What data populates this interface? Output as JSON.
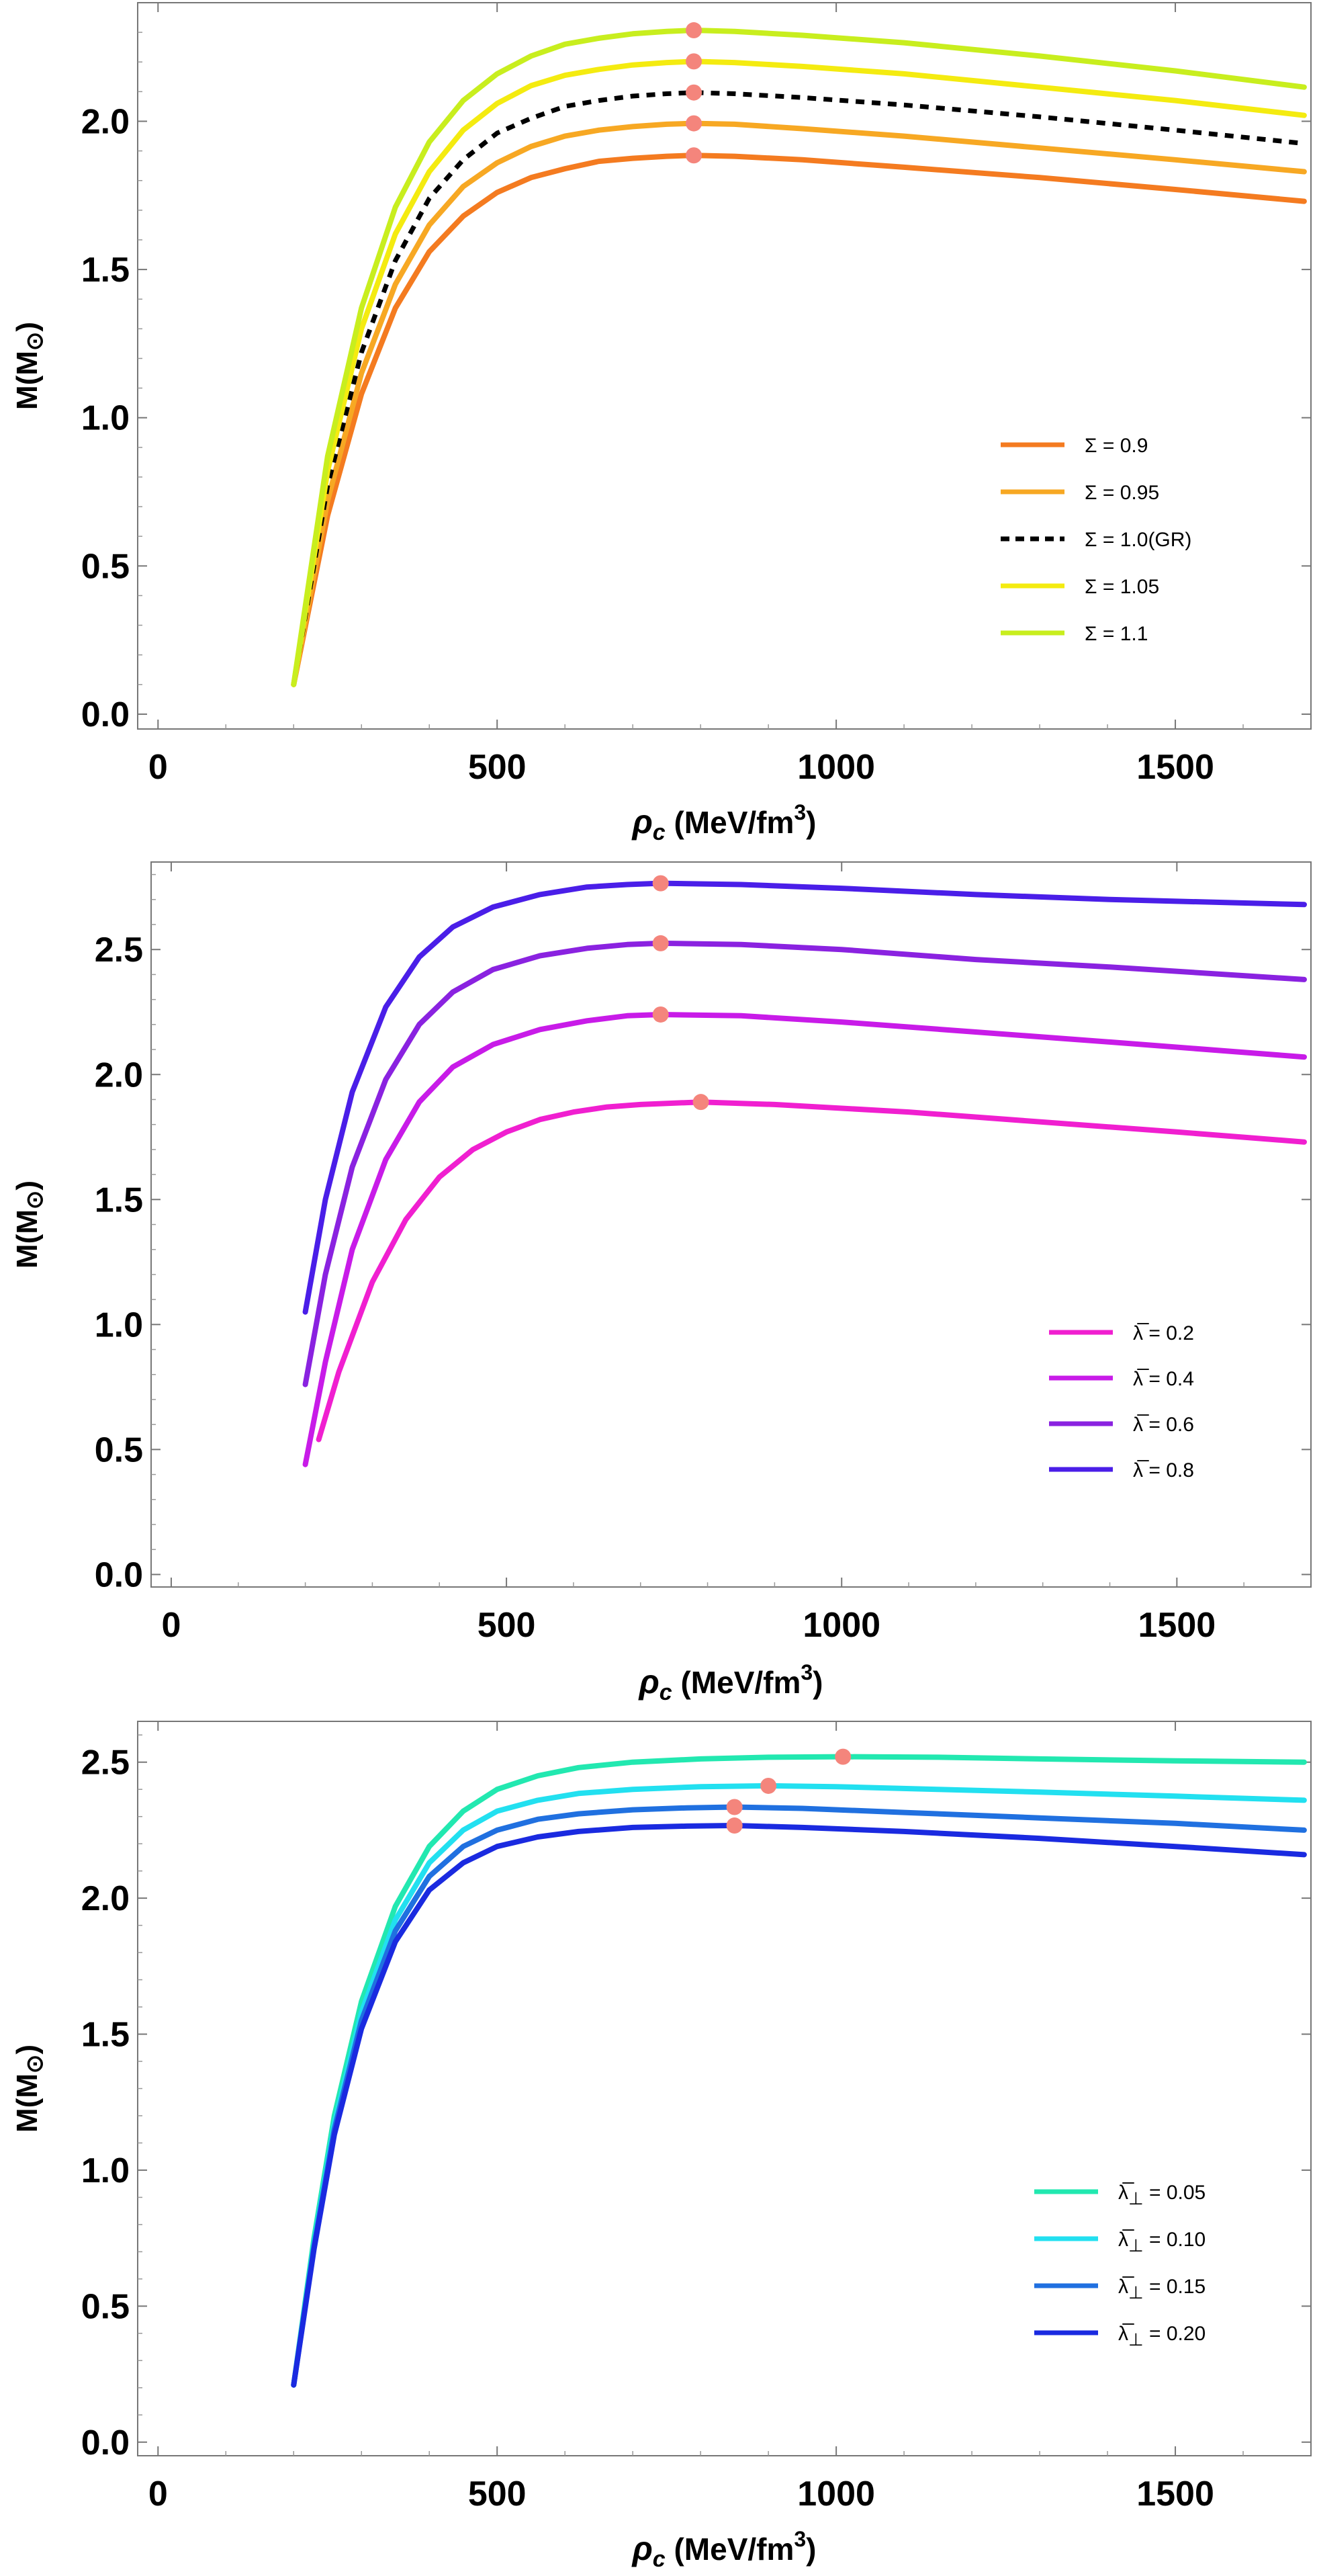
{
  "chart_data": [
    {
      "type": "line",
      "ylabel": "M(M⊙)",
      "ylabel_main": "M(M",
      "ylabel_sym": "⊙",
      "ylabel_close": ")",
      "xlabel_rho": "ρ",
      "xlabel_sub": "c",
      "xlabel_unit": " (MeV/fm",
      "xlabel_exp": "3",
      "xlabel_close": ")",
      "xlim": [
        -30,
        1700
      ],
      "ylim": [
        -0.05,
        2.4
      ],
      "xticks": [
        "0",
        "500",
        "1000",
        "1500"
      ],
      "yticks": [
        "0.0",
        "0.5",
        "1.0",
        "1.5",
        "2.0"
      ],
      "legend_position": "lower-right",
      "max_marker_color": "#F4857C",
      "series": [
        {
          "legend_sym": "Σ",
          "legend_sub": "",
          "legend_rest": " = 0.9",
          "color": "#F47B20",
          "dashed": false,
          "x": [
            200,
            250,
            300,
            350,
            400,
            450,
            500,
            550,
            600,
            650,
            700,
            750,
            790,
            850,
            950,
            1100,
            1300,
            1500,
            1690
          ],
          "y": [
            0.1,
            0.67,
            1.08,
            1.37,
            1.56,
            1.68,
            1.76,
            1.81,
            1.84,
            1.865,
            1.875,
            1.882,
            1.885,
            1.882,
            1.87,
            1.845,
            1.81,
            1.77,
            1.73
          ],
          "max": {
            "x": 790,
            "y": 1.885
          }
        },
        {
          "legend_sym": "Σ",
          "legend_sub": "",
          "legend_rest": " = 0.95",
          "color": "#F7A823",
          "dashed": false,
          "x": [
            200,
            250,
            300,
            350,
            400,
            450,
            500,
            550,
            600,
            650,
            700,
            750,
            790,
            850,
            950,
            1100,
            1300,
            1500,
            1690
          ],
          "y": [
            0.1,
            0.72,
            1.15,
            1.45,
            1.65,
            1.78,
            1.86,
            1.915,
            1.95,
            1.97,
            1.982,
            1.99,
            1.993,
            1.99,
            1.975,
            1.95,
            1.91,
            1.87,
            1.83
          ],
          "max": {
            "x": 790,
            "y": 1.993
          }
        },
        {
          "legend_sym": "Σ",
          "legend_sub": "",
          "legend_rest": " = 1.0(GR)",
          "color": "#000000",
          "dashed": true,
          "x": [
            200,
            250,
            300,
            350,
            400,
            450,
            500,
            550,
            600,
            650,
            700,
            750,
            790,
            850,
            950,
            1100,
            1300,
            1500,
            1690
          ],
          "y": [
            0.1,
            0.77,
            1.22,
            1.53,
            1.74,
            1.87,
            1.96,
            2.01,
            2.05,
            2.07,
            2.085,
            2.093,
            2.097,
            2.093,
            2.08,
            2.055,
            2.015,
            1.97,
            1.925
          ],
          "max": {
            "x": 790,
            "y": 2.097
          }
        },
        {
          "legend_sym": "Σ",
          "legend_sub": "",
          "legend_rest": " = 1.05",
          "color": "#F4EB10",
          "dashed": false,
          "x": [
            200,
            250,
            300,
            350,
            400,
            450,
            500,
            550,
            600,
            650,
            700,
            750,
            790,
            850,
            950,
            1100,
            1300,
            1500,
            1690
          ],
          "y": [
            0.1,
            0.82,
            1.3,
            1.62,
            1.83,
            1.97,
            2.06,
            2.12,
            2.155,
            2.175,
            2.19,
            2.198,
            2.202,
            2.198,
            2.185,
            2.16,
            2.115,
            2.07,
            2.02
          ],
          "max": {
            "x": 790,
            "y": 2.202
          }
        },
        {
          "legend_sym": "Σ",
          "legend_sub": "",
          "legend_rest": " = 1.1",
          "color": "#C8EE1E",
          "dashed": false,
          "x": [
            200,
            250,
            300,
            350,
            400,
            450,
            500,
            550,
            600,
            650,
            700,
            750,
            790,
            850,
            950,
            1100,
            1300,
            1500,
            1690
          ],
          "y": [
            0.1,
            0.87,
            1.37,
            1.71,
            1.93,
            2.07,
            2.16,
            2.22,
            2.26,
            2.28,
            2.295,
            2.303,
            2.307,
            2.303,
            2.29,
            2.265,
            2.22,
            2.17,
            2.115
          ],
          "max": {
            "x": 790,
            "y": 2.307
          }
        }
      ]
    },
    {
      "type": "line",
      "ylabel": "M(M⊙)",
      "ylabel_main": "M(M",
      "ylabel_sym": "⊙",
      "ylabel_close": ")",
      "xlabel_rho": "ρ",
      "xlabel_sub": "c",
      "xlabel_unit": " (MeV/fm",
      "xlabel_exp": "3",
      "xlabel_close": ")",
      "xlim": [
        -30,
        1700
      ],
      "ylim": [
        -0.05,
        2.85
      ],
      "xticks": [
        "0",
        "500",
        "1000",
        "1500"
      ],
      "yticks": [
        "0.0",
        "0.5",
        "1.0",
        "1.5",
        "2.0",
        "2.5"
      ],
      "legend_position": "lower-right",
      "max_marker_color": "#F4857C",
      "series": [
        {
          "legend_sym": "λ̅",
          "legend_sub": "",
          "legend_rest": " = 0.2",
          "color": "#F01FD0",
          "dashed": false,
          "x": [
            220,
            250,
            300,
            350,
            400,
            450,
            500,
            550,
            600,
            650,
            700,
            790,
            900,
            1100,
            1300,
            1500,
            1690
          ],
          "y": [
            0.54,
            0.81,
            1.17,
            1.42,
            1.59,
            1.7,
            1.77,
            1.82,
            1.85,
            1.87,
            1.88,
            1.89,
            1.88,
            1.85,
            1.81,
            1.77,
            1.73
          ],
          "max": {
            "x": 790,
            "y": 1.89
          }
        },
        {
          "legend_sym": "λ̅",
          "legend_sub": "",
          "legend_rest": " = 0.4",
          "color": "#C81BE8",
          "dashed": false,
          "x": [
            200,
            230,
            270,
            320,
            370,
            420,
            480,
            550,
            620,
            680,
            730,
            850,
            1000,
            1200,
            1400,
            1690
          ],
          "y": [
            0.44,
            0.85,
            1.3,
            1.66,
            1.89,
            2.03,
            2.12,
            2.18,
            2.215,
            2.235,
            2.24,
            2.235,
            2.21,
            2.17,
            2.13,
            2.07
          ],
          "max": {
            "x": 730,
            "y": 2.24
          }
        },
        {
          "legend_sym": "λ̅",
          "legend_sub": "",
          "legend_rest": " = 0.6",
          "color": "#8A22E0",
          "dashed": false,
          "x": [
            200,
            230,
            270,
            320,
            370,
            420,
            480,
            550,
            620,
            680,
            730,
            850,
            1000,
            1200,
            1400,
            1690
          ],
          "y": [
            0.76,
            1.2,
            1.63,
            1.98,
            2.2,
            2.33,
            2.42,
            2.475,
            2.505,
            2.52,
            2.525,
            2.52,
            2.5,
            2.46,
            2.43,
            2.38
          ],
          "max": {
            "x": 730,
            "y": 2.525
          }
        },
        {
          "legend_sym": "λ̅",
          "legend_sub": "",
          "legend_rest": " = 0.8",
          "color": "#4A1EE8",
          "dashed": false,
          "x": [
            200,
            230,
            270,
            320,
            370,
            420,
            480,
            550,
            620,
            680,
            730,
            850,
            1000,
            1200,
            1400,
            1690
          ],
          "y": [
            1.05,
            1.5,
            1.93,
            2.27,
            2.47,
            2.59,
            2.67,
            2.72,
            2.75,
            2.76,
            2.765,
            2.76,
            2.745,
            2.72,
            2.7,
            2.68
          ],
          "max": {
            "x": 730,
            "y": 2.765
          }
        }
      ]
    },
    {
      "type": "line",
      "ylabel": "M(M⊙)",
      "ylabel_main": "M(M",
      "ylabel_sym": "⊙",
      "ylabel_close": ")",
      "xlabel_rho": "ρ",
      "xlabel_sub": "c",
      "xlabel_unit": " (MeV/fm",
      "xlabel_exp": "3",
      "xlabel_close": ")",
      "xlim": [
        -30,
        1700
      ],
      "ylim": [
        -0.05,
        2.65
      ],
      "xticks": [
        "0",
        "500",
        "1000",
        "1500"
      ],
      "yticks": [
        "0.0",
        "0.5",
        "1.0",
        "1.5",
        "2.0",
        "2.5"
      ],
      "legend_position": "lower-right",
      "max_marker_color": "#F4857C",
      "series": [
        {
          "legend_sym": "λ̅",
          "legend_sub": "⊥",
          "legend_rest": " = 0.05",
          "color": "#22E8B0",
          "dashed": false,
          "x": [
            200,
            230,
            260,
            300,
            350,
            400,
            450,
            500,
            560,
            620,
            700,
            800,
            900,
            1010,
            1150,
            1300,
            1500,
            1690
          ],
          "y": [
            0.21,
            0.75,
            1.2,
            1.62,
            1.97,
            2.19,
            2.32,
            2.4,
            2.45,
            2.48,
            2.5,
            2.512,
            2.518,
            2.52,
            2.518,
            2.512,
            2.505,
            2.5
          ],
          "max": {
            "x": 1010,
            "y": 2.52
          }
        },
        {
          "legend_sym": "λ̅",
          "legend_sub": "⊥",
          "legend_rest": " = 0.10",
          "color": "#22E0F0",
          "dashed": false,
          "x": [
            200,
            230,
            260,
            300,
            350,
            400,
            450,
            500,
            560,
            620,
            700,
            800,
            900,
            1000,
            1150,
            1300,
            1500,
            1690
          ],
          "y": [
            0.21,
            0.73,
            1.17,
            1.58,
            1.92,
            2.13,
            2.25,
            2.32,
            2.36,
            2.385,
            2.4,
            2.41,
            2.413,
            2.41,
            2.4,
            2.39,
            2.375,
            2.36
          ],
          "max": {
            "x": 900,
            "y": 2.413
          }
        },
        {
          "legend_sym": "λ̅",
          "legend_sub": "⊥",
          "legend_rest": " = 0.15",
          "color": "#2070E0",
          "dashed": false,
          "x": [
            200,
            230,
            260,
            300,
            350,
            400,
            450,
            500,
            560,
            620,
            700,
            780,
            850,
            950,
            1100,
            1300,
            1500,
            1690
          ],
          "y": [
            0.21,
            0.72,
            1.15,
            1.55,
            1.88,
            2.08,
            2.19,
            2.25,
            2.29,
            2.31,
            2.325,
            2.332,
            2.335,
            2.33,
            2.315,
            2.295,
            2.275,
            2.25
          ],
          "max": {
            "x": 850,
            "y": 2.335
          }
        },
        {
          "legend_sym": "λ̅",
          "legend_sub": "⊥",
          "legend_rest": " = 0.20",
          "color": "#1A2AE0",
          "dashed": false,
          "x": [
            200,
            230,
            260,
            300,
            350,
            400,
            450,
            500,
            560,
            620,
            700,
            780,
            850,
            950,
            1100,
            1300,
            1500,
            1690
          ],
          "y": [
            0.21,
            0.71,
            1.13,
            1.52,
            1.84,
            2.03,
            2.13,
            2.19,
            2.225,
            2.245,
            2.26,
            2.265,
            2.267,
            2.26,
            2.245,
            2.22,
            2.19,
            2.16
          ],
          "max": {
            "x": 850,
            "y": 2.267
          }
        }
      ]
    }
  ]
}
